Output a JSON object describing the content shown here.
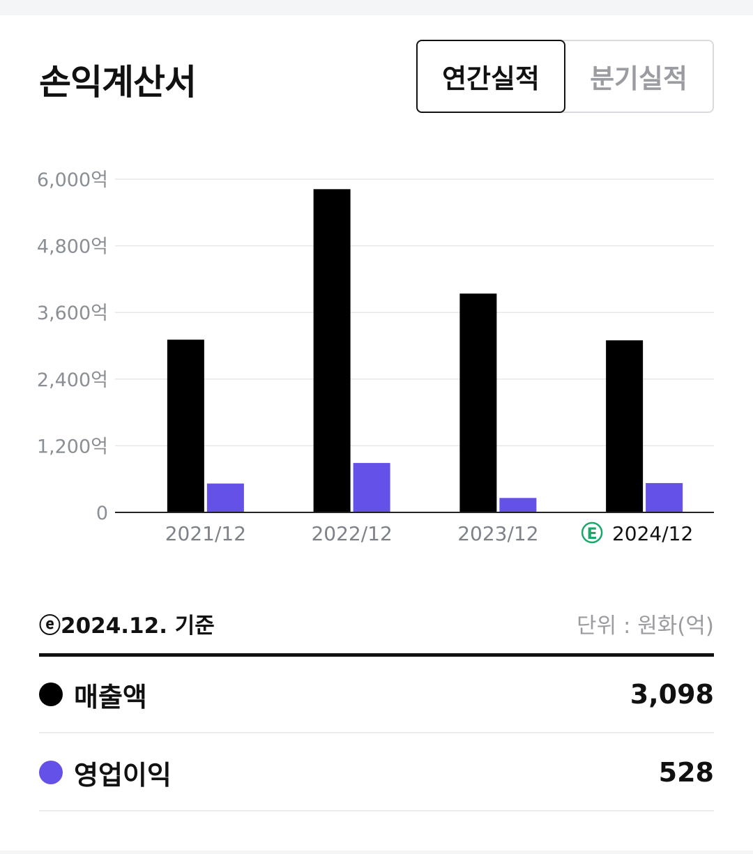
{
  "title": "손익계산서",
  "tabs": [
    {
      "label": "연간실적",
      "active": true
    },
    {
      "label": "분기실적",
      "active": false
    }
  ],
  "estimate_badge": "E",
  "chart_data": {
    "type": "bar",
    "categories": [
      "2021/12",
      "2022/12",
      "2023/12",
      "2024/12"
    ],
    "estimated_categories": [
      "2024/12"
    ],
    "series": [
      {
        "name": "매출액",
        "color": "#000000",
        "values": [
          3110,
          5820,
          3940,
          3098
        ]
      },
      {
        "name": "영업이익",
        "color": "#6451e8",
        "values": [
          520,
          890,
          260,
          528
        ]
      }
    ],
    "ylim": [
      0,
      6000
    ],
    "yticks": [
      0,
      1200,
      2400,
      3600,
      4800,
      6000
    ],
    "ytick_labels": [
      "0",
      "1,200억",
      "2,400억",
      "3,600억",
      "4,800억",
      "6,000억"
    ],
    "grid": true
  },
  "summary": {
    "basis": "ⓔ2024.12. 기준",
    "unit": "단위 : 원화(억)",
    "rows": [
      {
        "label": "매출액",
        "value": "3,098",
        "color": "#000000"
      },
      {
        "label": "영업이익",
        "value": "528",
        "color": "#6451e8"
      }
    ]
  }
}
